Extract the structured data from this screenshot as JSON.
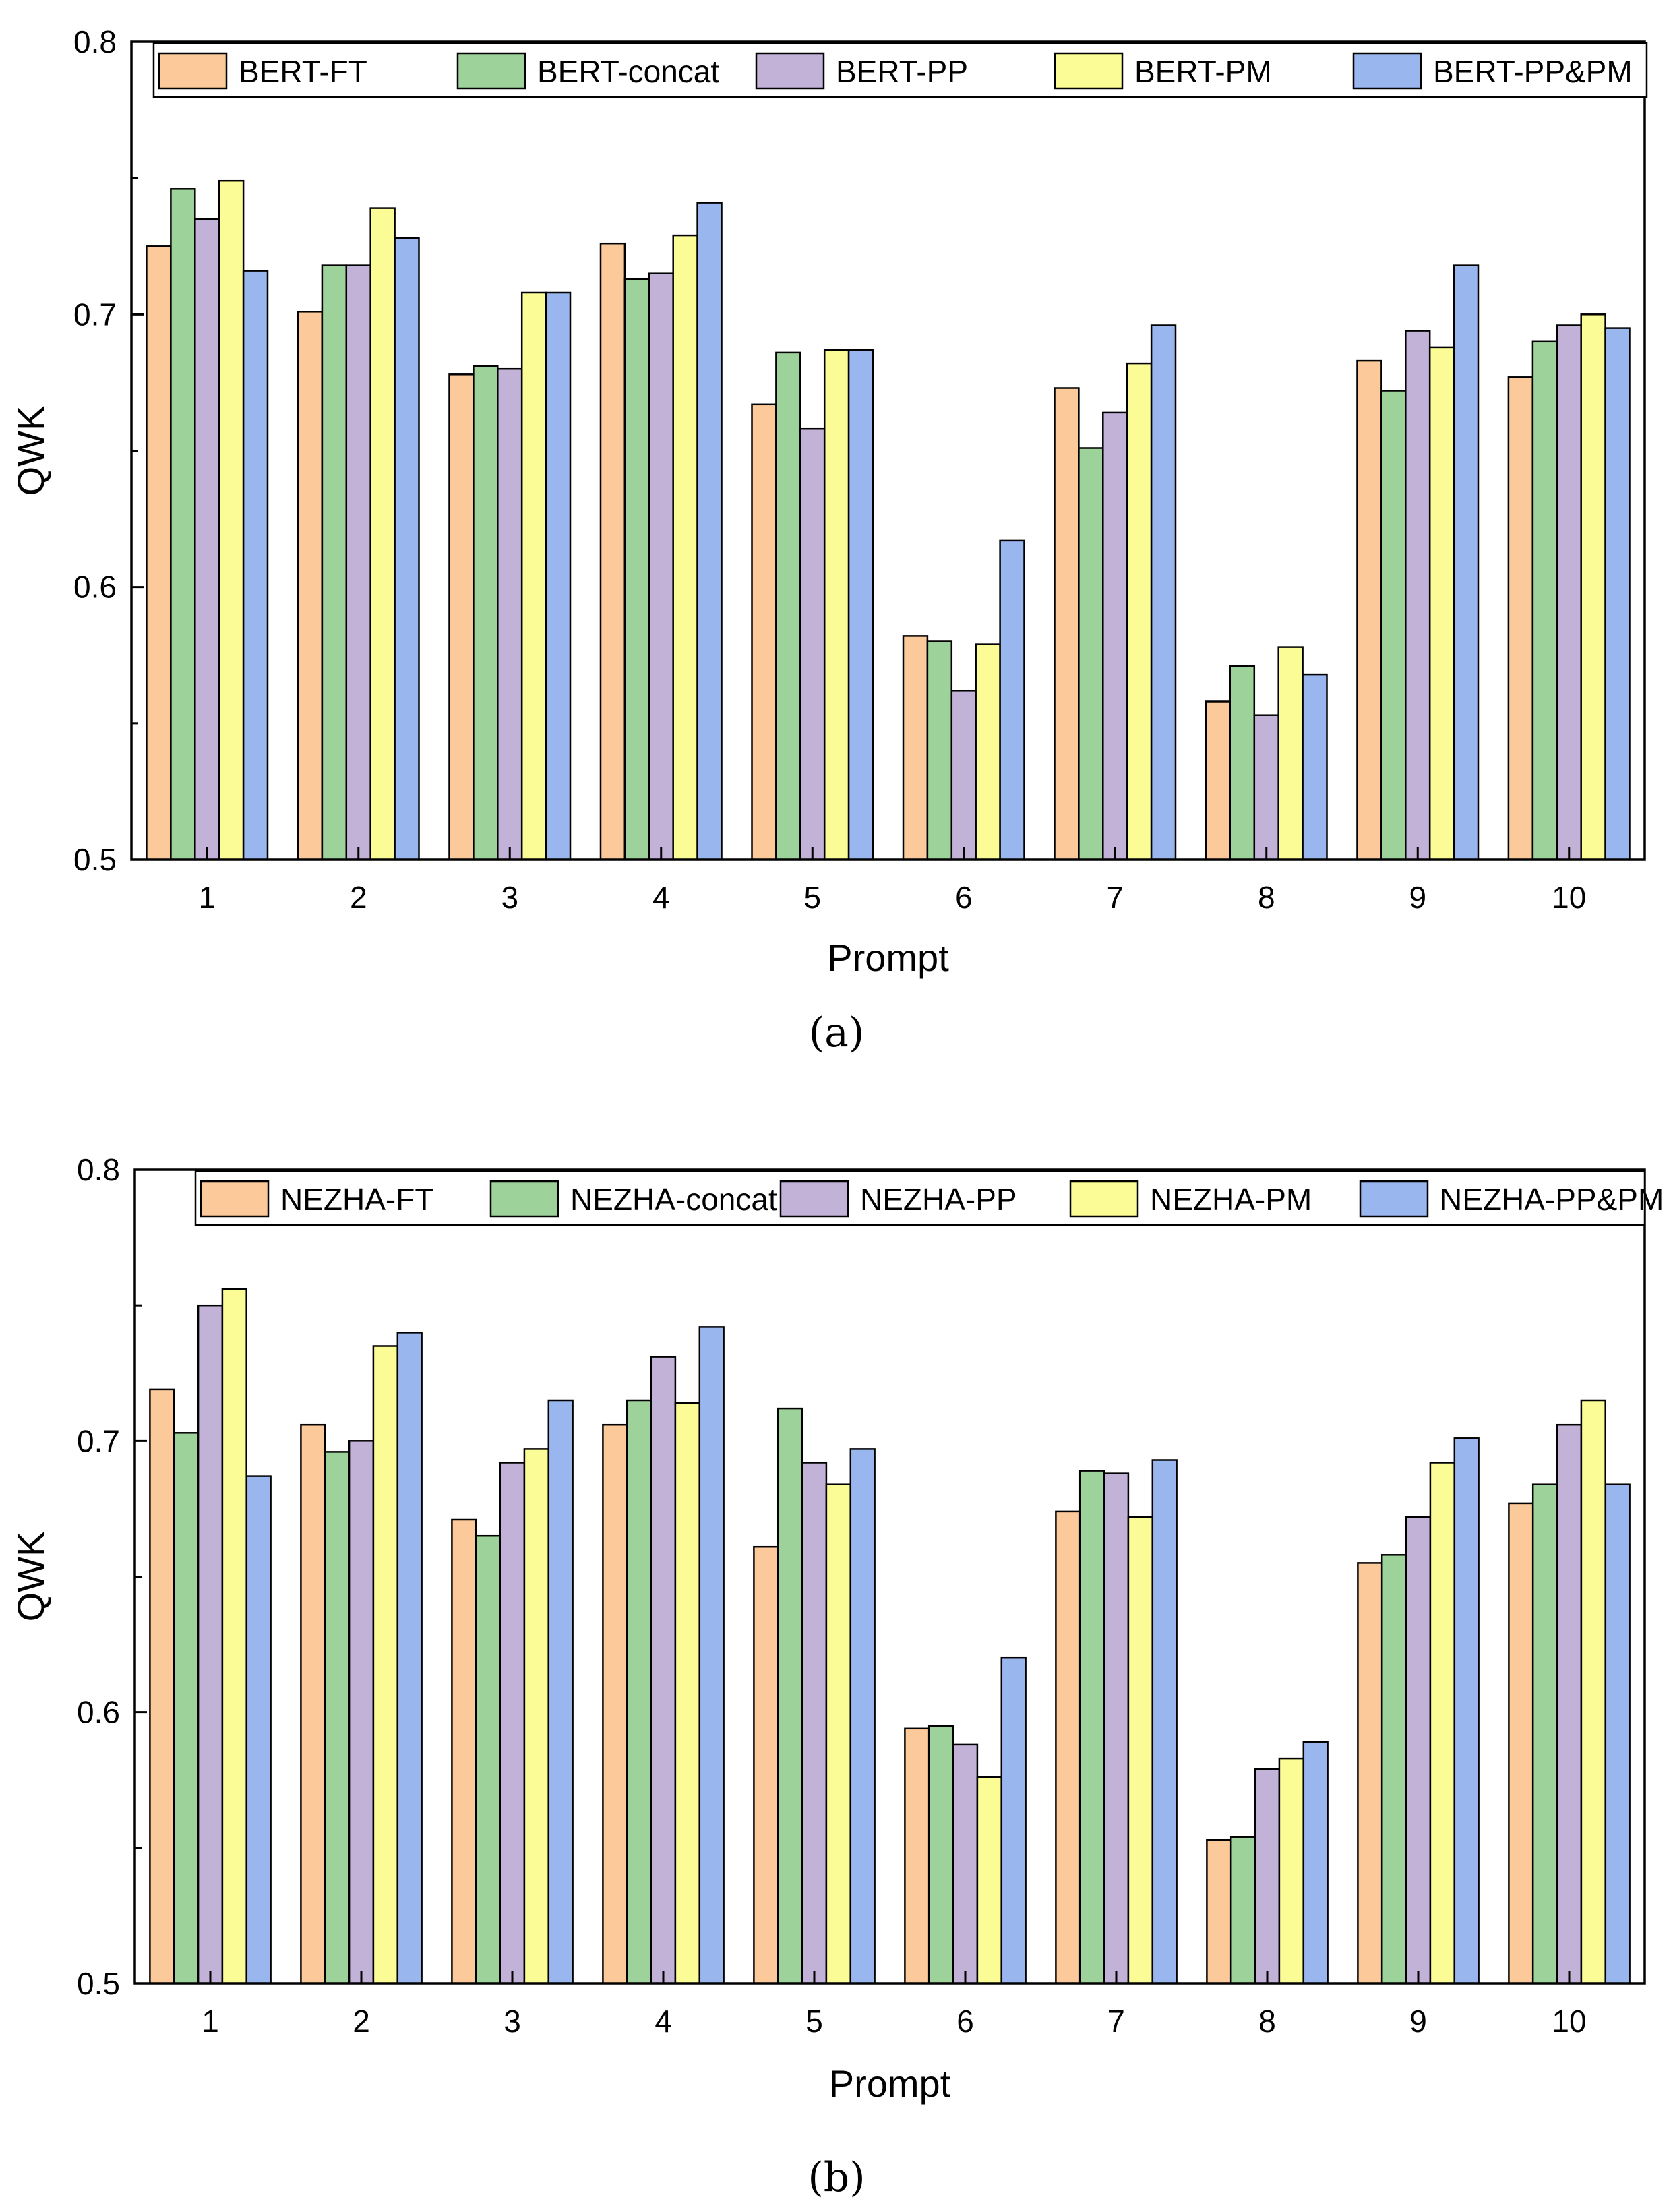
{
  "figure": {
    "subfigure_labels": [
      "(a)",
      "(b)"
    ]
  },
  "colors": {
    "series": [
      "#FCC99A",
      "#9DD39A",
      "#C3B2D8",
      "#FCFC96",
      "#99B6EF"
    ],
    "axis": "#000000",
    "background": "#ffffff"
  },
  "chart_data": [
    {
      "type": "bar",
      "title": "",
      "xlabel": "Prompt",
      "ylabel": "QWK",
      "ylim": [
        0.5,
        0.8
      ],
      "yticks": [
        0.5,
        0.6,
        0.7,
        0.8
      ],
      "ytick_labels": [
        "0.5",
        "0.6",
        "0.7",
        "0.8"
      ],
      "grid": false,
      "legend_position": "top",
      "categories": [
        "1",
        "2",
        "3",
        "4",
        "5",
        "6",
        "7",
        "8",
        "9",
        "10"
      ],
      "series": [
        {
          "name": "BERT-FT",
          "values": [
            0.725,
            0.701,
            0.678,
            0.726,
            0.667,
            0.582,
            0.673,
            0.558,
            0.683,
            0.677
          ]
        },
        {
          "name": "BERT-concat",
          "values": [
            0.746,
            0.718,
            0.681,
            0.713,
            0.686,
            0.58,
            0.651,
            0.571,
            0.672,
            0.69
          ]
        },
        {
          "name": "BERT-PP",
          "values": [
            0.735,
            0.718,
            0.68,
            0.715,
            0.658,
            0.562,
            0.664,
            0.553,
            0.694,
            0.696
          ]
        },
        {
          "name": "BERT-PM",
          "values": [
            0.749,
            0.739,
            0.708,
            0.729,
            0.687,
            0.579,
            0.682,
            0.578,
            0.688,
            0.7
          ]
        },
        {
          "name": "BERT-PP&PM",
          "values": [
            0.716,
            0.728,
            0.708,
            0.741,
            0.687,
            0.617,
            0.696,
            0.568,
            0.718,
            0.695
          ]
        }
      ]
    },
    {
      "type": "bar",
      "title": "",
      "xlabel": "Prompt",
      "ylabel": "QWK",
      "ylim": [
        0.5,
        0.8
      ],
      "yticks": [
        0.5,
        0.6,
        0.7,
        0.8
      ],
      "ytick_labels": [
        "0.5",
        "0.6",
        "0.7",
        "0.8"
      ],
      "grid": false,
      "legend_position": "top",
      "categories": [
        "1",
        "2",
        "3",
        "4",
        "5",
        "6",
        "7",
        "8",
        "9",
        "10"
      ],
      "series": [
        {
          "name": "NEZHA-FT",
          "values": [
            0.719,
            0.706,
            0.671,
            0.706,
            0.661,
            0.594,
            0.674,
            0.553,
            0.655,
            0.677
          ]
        },
        {
          "name": "NEZHA-concat",
          "values": [
            0.703,
            0.696,
            0.665,
            0.715,
            0.712,
            0.595,
            0.689,
            0.554,
            0.658,
            0.684
          ]
        },
        {
          "name": "NEZHA-PP",
          "values": [
            0.75,
            0.7,
            0.692,
            0.731,
            0.692,
            0.588,
            0.688,
            0.579,
            0.672,
            0.706
          ]
        },
        {
          "name": "NEZHA-PM",
          "values": [
            0.756,
            0.735,
            0.697,
            0.714,
            0.684,
            0.576,
            0.672,
            0.583,
            0.692,
            0.715
          ]
        },
        {
          "name": "NEZHA-PP&PM",
          "values": [
            0.687,
            0.74,
            0.715,
            0.742,
            0.697,
            0.62,
            0.693,
            0.589,
            0.701,
            0.684
          ]
        }
      ]
    }
  ]
}
